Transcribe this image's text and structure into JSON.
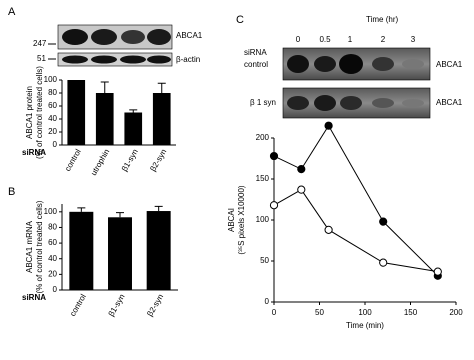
{
  "panel_labels": [
    "A",
    "B",
    "C"
  ],
  "blot_a": {
    "markers": [
      "247",
      "51"
    ],
    "labels": [
      "ABCA1",
      "β-actin"
    ]
  },
  "blot_c": {
    "title": "Time (hr)",
    "times": [
      "0",
      "0.5",
      "1",
      "2",
      "3"
    ],
    "row_labels": [
      [
        "siRNA",
        "control"
      ],
      [
        "β 1 syn"
      ]
    ],
    "labels": [
      "ABCA1",
      "ABCA1"
    ]
  },
  "chart_data": [
    {
      "type": "bar",
      "xlabel": "siRNA",
      "ylabel": [
        "ABCA1 protein",
        "(% of control treated cells)"
      ],
      "categories": [
        "control",
        "utrophin",
        "β1-syn",
        "β2-syn"
      ],
      "values": [
        100,
        80,
        50,
        80
      ],
      "errors": [
        null,
        17,
        4,
        15
      ],
      "color": "#000",
      "ylim": [
        0,
        100
      ],
      "yticks": [
        0,
        20,
        40,
        60,
        80,
        100
      ]
    },
    {
      "type": "bar",
      "xlabel": "siRNA",
      "ylabel": [
        "ABCA1 mRNA",
        "(% of control treated cells)"
      ],
      "categories": [
        "control",
        "β1-syn",
        "β2-syn"
      ],
      "values": [
        100,
        93,
        101
      ],
      "errors": [
        5,
        6,
        6
      ],
      "color": "#000",
      "ylim": [
        0,
        110
      ],
      "yticks": [
        0,
        20,
        40,
        60,
        80,
        100
      ]
    },
    {
      "type": "line",
      "xlabel": "Time (min)",
      "ylabel": [
        "ABCAI",
        "(³⁵S pixels X10000)"
      ],
      "x": [
        0,
        30,
        60,
        120,
        180
      ],
      "series": [
        {
          "color": "#000",
          "marker_fill": "#000",
          "values": [
            178,
            162,
            215,
            98,
            32
          ]
        },
        {
          "color": "#000",
          "marker_fill": "#fff",
          "values": [
            118,
            137,
            88,
            48,
            37
          ]
        }
      ],
      "xlim": [
        0,
        200
      ],
      "xticks": [
        0,
        50,
        100,
        150,
        200
      ],
      "ylim": [
        0,
        200
      ],
      "yticks": [
        0,
        50,
        100,
        150,
        200
      ]
    }
  ]
}
